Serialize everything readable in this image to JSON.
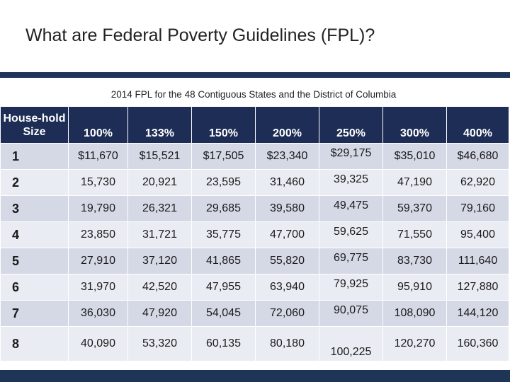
{
  "title": "What are Federal Poverty Guidelines (FPL)?",
  "table": {
    "caption": "2014 FPL for the 48 Contiguous States and the District of Columbia",
    "header": [
      "House-hold Size",
      "100%",
      "133%",
      "150%",
      "200%",
      "250%",
      "300%",
      "400%"
    ],
    "rows": [
      [
        "1",
        "$11,670",
        "$15,521",
        "$17,505",
        "$23,340",
        "$29,175",
        "$35,010",
        "$46,680"
      ],
      [
        "2",
        "15,730",
        "20,921",
        "23,595",
        "31,460",
        "39,325",
        "47,190",
        "62,920"
      ],
      [
        "3",
        "19,790",
        "26,321",
        "29,685",
        "39,580",
        "49,475",
        "59,370",
        "79,160"
      ],
      [
        "4",
        "23,850",
        "31,721",
        "35,775",
        "47,700",
        "59,625",
        "71,550",
        "95,400"
      ],
      [
        "5",
        "27,910",
        "37,120",
        "41,865",
        "55,820",
        "69,775",
        "83,730",
        "111,640"
      ],
      [
        "6",
        "31,970",
        "42,520",
        "47,955",
        "63,940",
        "79,925",
        "95,910",
        "127,880"
      ],
      [
        "7",
        "36,030",
        "47,920",
        "54,045",
        "72,060",
        "90,075",
        "108,090",
        "144,120"
      ],
      [
        "8",
        "40,090",
        "53,320",
        "60,135",
        "80,180",
        "100,225",
        "120,270",
        "160,360"
      ]
    ]
  }
}
